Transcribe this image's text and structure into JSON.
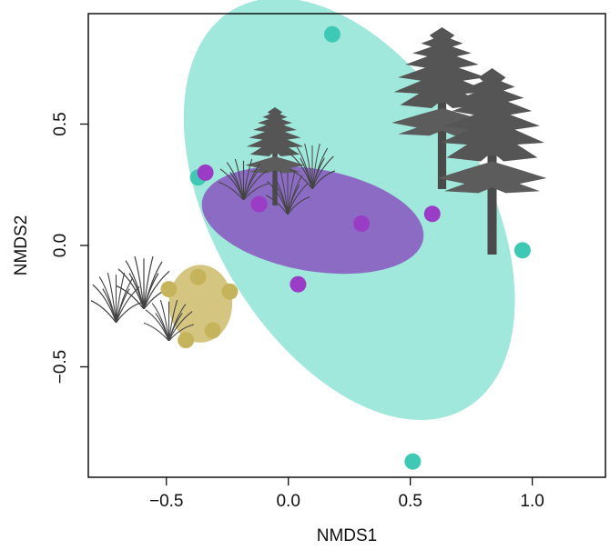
{
  "chart_data": {
    "type": "scatter",
    "x_label": "NMDS1",
    "y_label": "NMDS2",
    "xlim": [
      -0.82,
      1.3
    ],
    "ylim": [
      -0.955,
      0.955
    ],
    "xticks": [
      {
        "value": -0.5,
        "label": "−0.5"
      },
      {
        "value": 0,
        "label": "0.0"
      },
      0.5,
      {
        "value": 1,
        "label": "1.0"
      }
    ],
    "yticks": [
      {
        "value": -0.5,
        "label": "−0.5"
      },
      {
        "value": 0,
        "label": "0.0"
      },
      0.5
    ],
    "series": [
      {
        "color": "#3fc9b5",
        "ellipse_color": "#8fe3d6",
        "x": [
          0.18,
          -0.37,
          0.96,
          0.51
        ],
        "values": [
          0.87,
          0.28,
          -0.02,
          -0.89
        ],
        "ellipse": {
          "center": [
            0.25,
            0.15
          ],
          "radii": [
            0.95,
            0.56
          ],
          "angle": -60
        }
      },
      {
        "color": "#9a3cc6",
        "ellipse_color": "#8755c0",
        "x": [
          -0.34,
          -0.12,
          0.3,
          0.59,
          0.04
        ],
        "values": [
          0.3,
          0.17,
          0.09,
          0.13,
          -0.16
        ],
        "ellipse": {
          "center": [
            0.1,
            0.105
          ],
          "radii": [
            0.46,
            0.21
          ],
          "angle": -10
        }
      },
      {
        "color": "#c6b45c",
        "ellipse_color": "#cdbb6a",
        "x": [
          -0.49,
          -0.37,
          -0.24,
          -0.31,
          -0.42
        ],
        "values": [
          -0.18,
          -0.13,
          -0.19,
          -0.35,
          -0.39
        ],
        "ellipse": {
          "center": [
            -0.36,
            -0.24
          ],
          "radii": [
            0.13,
            0.16
          ],
          "angle": 0
        }
      }
    ]
  }
}
